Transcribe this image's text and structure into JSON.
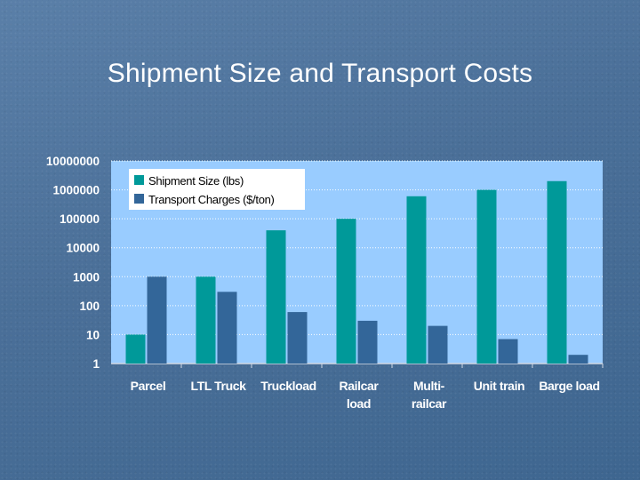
{
  "slide": {
    "title": "Shipment Size and Transport Costs"
  },
  "colors": {
    "plot_background": "#99ccff",
    "shipment_size": "#009999",
    "transport_charges": "#336699",
    "gridline": "#ffffff"
  },
  "chart_data": {
    "type": "bar",
    "yscale": "log",
    "ylim": [
      1,
      10000000
    ],
    "ytick_labels": [
      "1",
      "10",
      "100",
      "1000",
      "10000",
      "100000",
      "1000000",
      "10000000"
    ],
    "ytick_values": [
      1,
      10,
      100,
      1000,
      10000,
      100000,
      1000000,
      10000000
    ],
    "categories": [
      {
        "lines": [
          "Parcel"
        ]
      },
      {
        "lines": [
          "LTL Truck"
        ]
      },
      {
        "lines": [
          "Truckload"
        ]
      },
      {
        "lines": [
          "Railcar",
          "load"
        ]
      },
      {
        "lines": [
          "Multi-",
          "railcar"
        ]
      },
      {
        "lines": [
          "Unit train"
        ]
      },
      {
        "lines": [
          "Barge load"
        ]
      }
    ],
    "series": [
      {
        "name": "Shipment Size (lbs)",
        "color": "#009999",
        "values": [
          10,
          1000,
          40000,
          100000,
          600000,
          1000000,
          2000000
        ]
      },
      {
        "name": "Transport Charges ($/ton)",
        "color": "#336699",
        "values": [
          1000,
          300,
          60,
          30,
          20,
          7,
          2
        ]
      }
    ],
    "legend_position": "top-left",
    "grid": "dotted-horizontal"
  }
}
